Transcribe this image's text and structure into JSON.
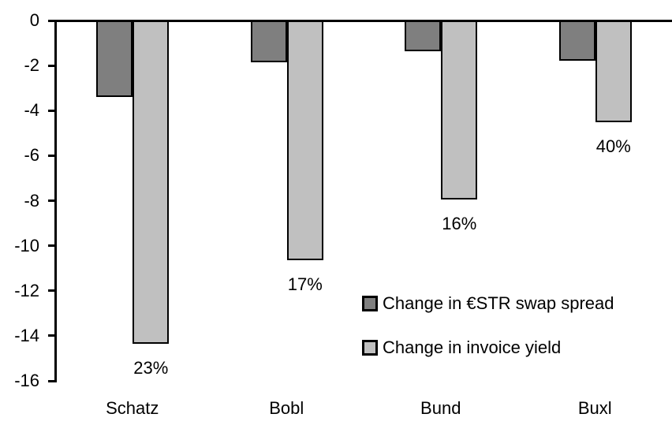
{
  "chart_data": {
    "type": "bar",
    "title": "",
    "xlabel": "",
    "ylabel": "",
    "categories": [
      "Schatz",
      "Bobl",
      "Bund",
      "Buxl"
    ],
    "series": [
      {
        "name": "Change in €STR swap spread",
        "color": "#7F7F7F",
        "values": [
          -3.35,
          -1.8,
          -1.3,
          -1.75
        ]
      },
      {
        "name": "Change in invoice yield",
        "color": "#C0C0C0",
        "values": [
          -14.3,
          -10.6,
          -7.9,
          -4.45
        ],
        "point_labels": [
          "23%",
          "17%",
          "16%",
          "40%"
        ]
      }
    ],
    "ylim": [
      -16,
      0
    ],
    "yticks": [
      0,
      -2,
      -4,
      -6,
      -8,
      -10,
      -12,
      -14,
      -16
    ],
    "grid": false,
    "legend_position": "inside-right",
    "axis_color": "#000000",
    "bar_outline_color": "#000000",
    "background_color": "#FFFFFF"
  }
}
